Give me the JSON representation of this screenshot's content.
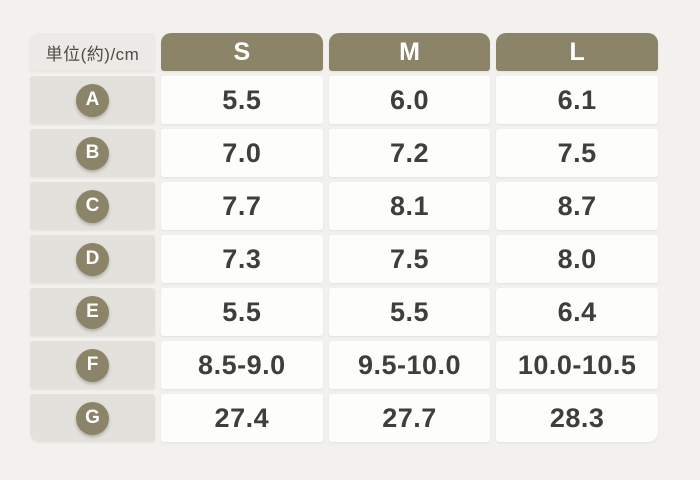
{
  "table": {
    "unit_label": "単位(約)/cm",
    "columns": [
      "S",
      "M",
      "L"
    ],
    "rows": [
      {
        "label": "A",
        "values": [
          "5.5",
          "6.0",
          "6.1"
        ]
      },
      {
        "label": "B",
        "values": [
          "7.0",
          "7.2",
          "7.5"
        ]
      },
      {
        "label": "C",
        "values": [
          "7.7",
          "8.1",
          "8.7"
        ]
      },
      {
        "label": "D",
        "values": [
          "7.3",
          "7.5",
          "8.0"
        ]
      },
      {
        "label": "E",
        "values": [
          "5.5",
          "5.5",
          "6.4"
        ]
      },
      {
        "label": "F",
        "values": [
          "8.5-9.0",
          "9.5-10.0",
          "10.0-10.5"
        ]
      },
      {
        "label": "G",
        "values": [
          "27.4",
          "27.7",
          "28.3"
        ]
      }
    ]
  },
  "colors": {
    "olive": "#8b8468",
    "label_cell_bg": "#e3e1dc",
    "corner_cell_bg": "#eceae6",
    "page_bg": "#f2f1ee",
    "data_cell_bg": "#fdfdfc",
    "value_text": "#3f3e3b",
    "header_text": "#ffffff"
  },
  "chart_data": {
    "type": "table",
    "title": "単位(約)/cm",
    "columns": [
      "S",
      "M",
      "L"
    ],
    "row_labels": [
      "A",
      "B",
      "C",
      "D",
      "E",
      "F",
      "G"
    ],
    "rows": [
      [
        "5.5",
        "6.0",
        "6.1"
      ],
      [
        "7.0",
        "7.2",
        "7.5"
      ],
      [
        "7.7",
        "8.1",
        "8.7"
      ],
      [
        "7.3",
        "7.5",
        "8.0"
      ],
      [
        "5.5",
        "5.5",
        "6.4"
      ],
      [
        "8.5-9.0",
        "9.5-10.0",
        "10.0-10.5"
      ],
      [
        "27.4",
        "27.7",
        "28.3"
      ]
    ]
  }
}
